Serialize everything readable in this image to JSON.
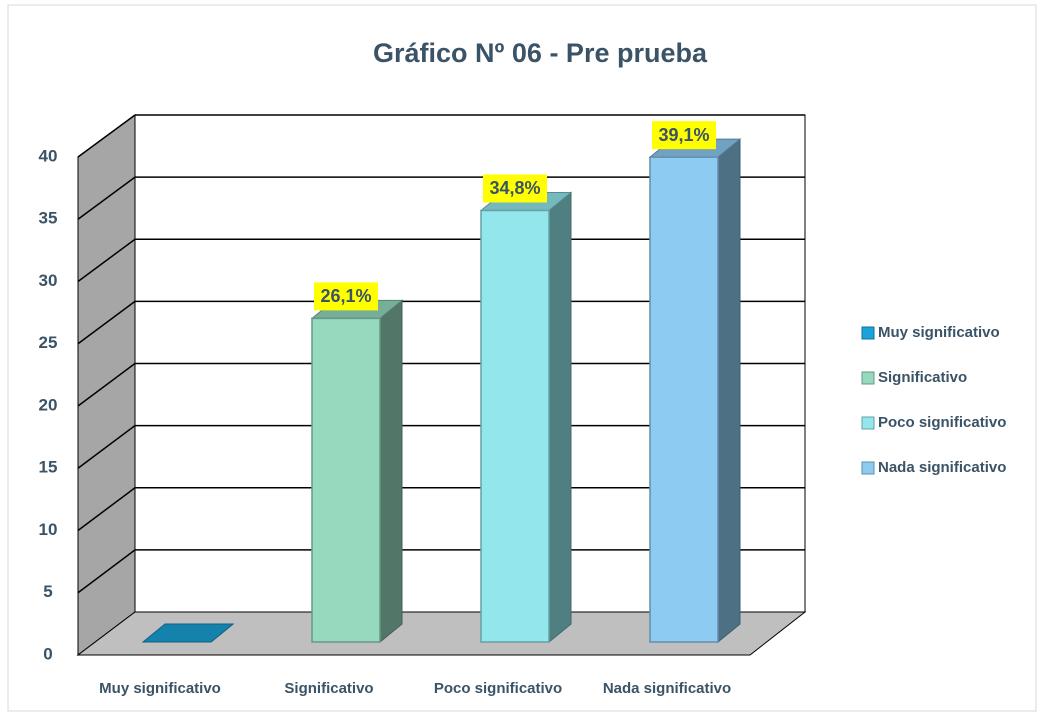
{
  "chart_data": {
    "type": "bar3d",
    "title": "Gráfico Nº 06 - Pre prueba",
    "categories": [
      "Muy significativo",
      "Significativo",
      "Poco significativo",
      "Nada significativo"
    ],
    "values": [
      0,
      26.1,
      34.8,
      39.1
    ],
    "value_labels": [
      null,
      "26,1%",
      "34,8%",
      "39,1%"
    ],
    "colors": [
      "#1aa3d9",
      "#95d9be",
      "#92e6ec",
      "#8ecbf2"
    ],
    "ylim": [
      0,
      40
    ],
    "yticks": [
      0,
      5,
      10,
      15,
      20,
      25,
      30,
      35,
      40
    ],
    "grid": true,
    "legend": "right"
  }
}
